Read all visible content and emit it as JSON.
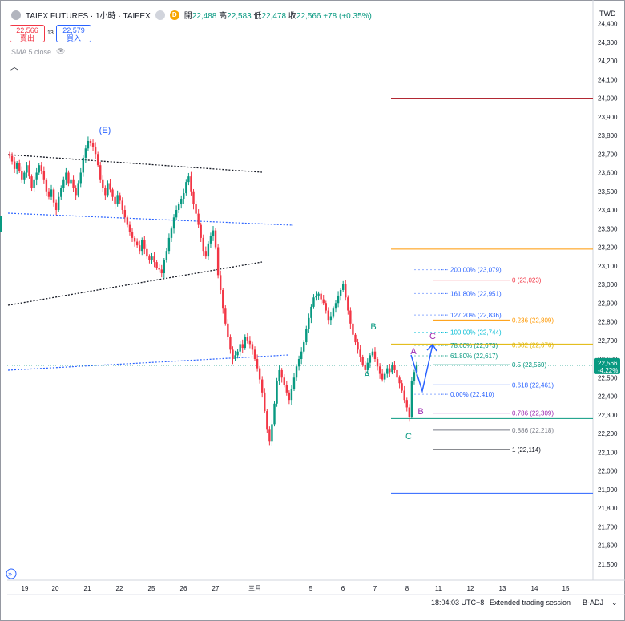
{
  "header": {
    "symbol": "TAIEX FUTURES · 1小時 · TAIFEX",
    "badge_letter": "D",
    "open_label": "開",
    "open": "22,488",
    "high_label": "高",
    "high": "22,583",
    "low_label": "低",
    "low": "22,478",
    "close_label": "收",
    "close": "22,566",
    "change": "+78 (+0.35%)",
    "currency": "TWD"
  },
  "trade": {
    "sell_price": "22,566",
    "sell_label": "賣出",
    "spread": "13",
    "buy_price": "22,579",
    "buy_label": "買入"
  },
  "indicator": {
    "label": "SMA 5 close"
  },
  "footer": {
    "time": "18:04:03 UTC+8",
    "session": "Extended trading session",
    "adj": "B-ADJ"
  },
  "chart_data": {
    "type": "candlestick",
    "y_ticks": [
      21500,
      21600,
      21700,
      21800,
      21900,
      22000,
      22100,
      22200,
      22300,
      22400,
      22500,
      22600,
      22700,
      22800,
      22900,
      23000,
      23100,
      23200,
      23300,
      23400,
      23500,
      23600,
      23700,
      23800,
      23900,
      24000,
      24100,
      24200,
      24300,
      24400
    ],
    "x_ticks": [
      "19",
      "20",
      "21",
      "22",
      "25",
      "26",
      "27",
      "三月",
      "5",
      "6",
      "7",
      "8",
      "11",
      "12",
      "13",
      "14",
      "15"
    ],
    "last_price": {
      "value": "22,566",
      "change": "-4.22%",
      "color": "#089981"
    },
    "closes": [
      23690,
      23660,
      23620,
      23650,
      23610,
      23560,
      23600,
      23640,
      23580,
      23520,
      23560,
      23600,
      23640,
      23610,
      23560,
      23500,
      23470,
      23510,
      23440,
      23400,
      23470,
      23520,
      23560,
      23600,
      23540,
      23560,
      23520,
      23480,
      23540,
      23600,
      23680,
      23730,
      23770,
      23760,
      23740,
      23700,
      23640,
      23560,
      23520,
      23480,
      23540,
      23510,
      23470,
      23430,
      23480,
      23450,
      23400,
      23360,
      23320,
      23280,
      23250,
      23230,
      23210,
      23180,
      23240,
      23190,
      23150,
      23130,
      23150,
      23120,
      23090,
      23080,
      23060,
      23130,
      23180,
      23250,
      23300,
      23360,
      23400,
      23430,
      23460,
      23490,
      23550,
      23580,
      23500,
      23430,
      23380,
      23320,
      23250,
      23180,
      23150,
      23220,
      23260,
      23290,
      23200,
      23050,
      22970,
      22870,
      22790,
      22720,
      22650,
      22600,
      22620,
      22640,
      22680,
      22660,
      22720,
      22700,
      22680,
      22650,
      22600,
      22550,
      22490,
      22420,
      22320,
      22220,
      22160,
      22250,
      22360,
      22480,
      22540,
      22500,
      22460,
      22420,
      22380,
      22440,
      22500,
      22560,
      22600,
      22640,
      22690,
      22760,
      22820,
      22880,
      22930,
      22940,
      22950,
      22920,
      22900,
      22860,
      22810,
      22830,
      22870,
      22900,
      22940,
      22970,
      23000,
      22930,
      22860,
      22790,
      22730,
      22690,
      22650,
      22610,
      22570,
      22540,
      22580,
      22620,
      22640,
      22600,
      22560,
      22520,
      22490,
      22520,
      22550,
      22530,
      22570,
      22540,
      22500,
      22470,
      22430,
      22380,
      22340,
      22290,
      22480,
      22530,
      22566
    ],
    "waves": [
      {
        "label": "(E)",
        "color": "#2962ff"
      },
      {
        "label": "B",
        "color": "#089981"
      },
      {
        "label": "A",
        "color": "#089981"
      },
      {
        "label": "C",
        "color": "#089981"
      },
      {
        "label": "A",
        "color": "#9c27b0"
      },
      {
        "label": "B",
        "color": "#9c27b0"
      },
      {
        "label": "C",
        "color": "#9c27b0"
      }
    ],
    "fib_extension": [
      {
        "label": "200.00% (23,079)",
        "price": 23079,
        "color": "#2962ff"
      },
      {
        "label": "161.80% (22,951)",
        "price": 22951,
        "color": "#2962ff"
      },
      {
        "label": "127.20% (22,836)",
        "price": 22836,
        "color": "#2962ff"
      },
      {
        "label": "100.00% (22,744)",
        "price": 22744,
        "color": "#00bcd4"
      },
      {
        "label": "78.60% (22,673)",
        "price": 22673,
        "color": "#089981"
      },
      {
        "label": "61.80% (22,617)",
        "price": 22617,
        "color": "#089981"
      },
      {
        "label": "0.00% (22,410)",
        "price": 22410,
        "color": "#2962ff"
      }
    ],
    "fib_retracement": [
      {
        "label": "0 (23,023)",
        "price": 23023,
        "color": "#f23645"
      },
      {
        "label": "0.236 (22,809)",
        "price": 22809,
        "color": "#ff9800"
      },
      {
        "label": "0.382 (22,676)",
        "price": 22676,
        "color": "#e0b400"
      },
      {
        "label": "0.5 (22,569)",
        "price": 22569,
        "color": "#089981"
      },
      {
        "label": "0.618 (22,461)",
        "price": 22461,
        "color": "#2962ff"
      },
      {
        "label": "0.786 (22,309)",
        "price": 22309,
        "color": "#9c27b0"
      },
      {
        "label": "0.886 (22,218)",
        "price": 22218,
        "color": "#787b86"
      },
      {
        "label": "1 (22,114)",
        "price": 22114,
        "color": "#131722"
      }
    ],
    "horizontal_levels": [
      {
        "price": 24000,
        "color": "#b22833"
      },
      {
        "price": 23190,
        "color": "#ff9800"
      },
      {
        "price": 22680,
        "color": "#e0b400"
      },
      {
        "price": 22280,
        "color": "#089981"
      },
      {
        "price": 21880,
        "color": "#2962ff"
      }
    ]
  }
}
